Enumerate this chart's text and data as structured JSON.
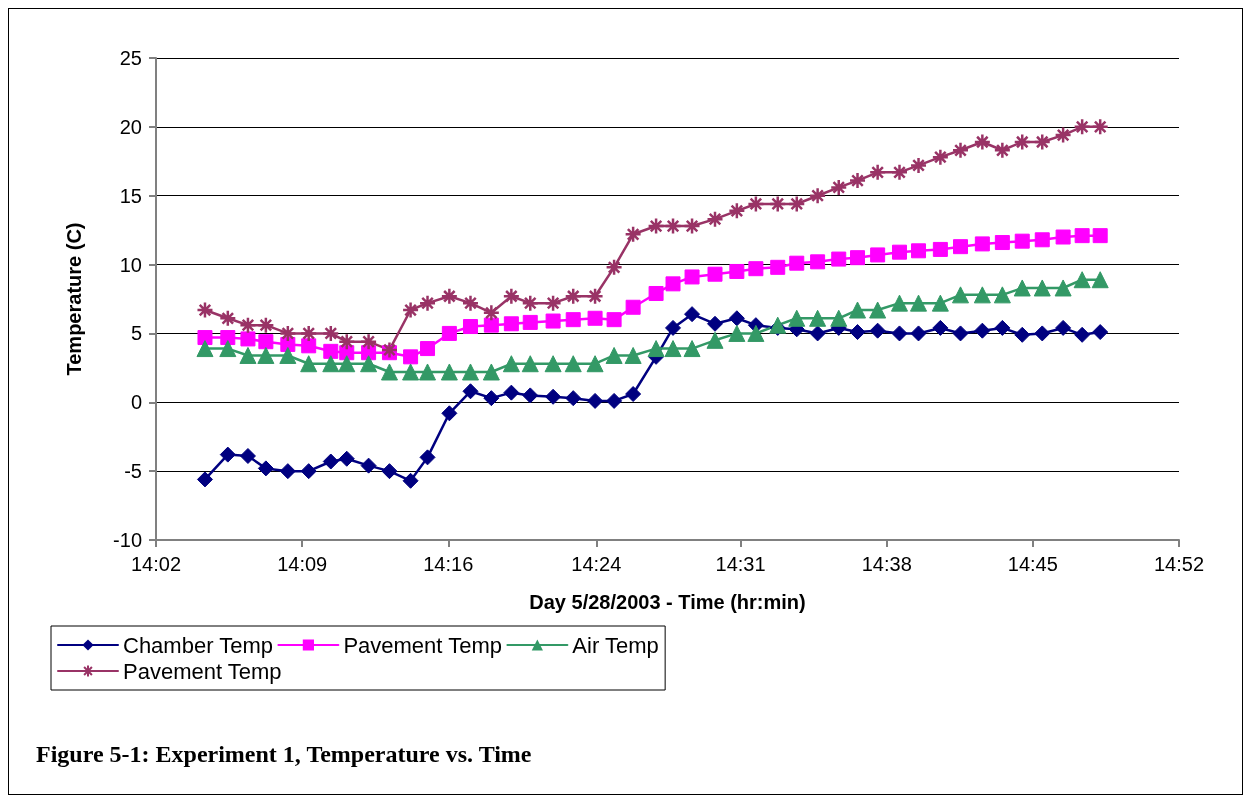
{
  "chart_data": {
    "type": "line",
    "xlabel": "Day 5/28/2003 - Time (hr:min)",
    "ylabel": "Temperature (C)",
    "annotations": [
      "Figure 5-1: Experiment 1, Temperature vs. Time"
    ],
    "x": [
      14.0732,
      14.0918,
      14.1082,
      14.1228,
      14.1407,
      14.1577,
      14.1757,
      14.1887,
      14.2065,
      14.2235,
      14.2407,
      14.2545,
      14.2723,
      14.2895,
      14.3065,
      14.3228,
      14.3382,
      14.3568,
      14.3732,
      14.391,
      14.4065,
      14.422,
      14.4407,
      14.4545,
      14.47,
      14.4887,
      14.5065,
      14.522,
      14.5398,
      14.5553,
      14.5723,
      14.5895,
      14.6048,
      14.6212,
      14.639,
      14.6545,
      14.6723,
      14.6887,
      14.7065,
      14.7228,
      14.739,
      14.7553,
      14.7723,
      14.7878,
      14.8025
    ],
    "series": [
      {
        "name": "Chamber Temp",
        "color": "#000080",
        "marker": "diamond",
        "values": [
          -5.6,
          -3.8,
          -3.9,
          -4.8,
          -5.0,
          -5.0,
          -4.3,
          -4.1,
          -4.6,
          -5.0,
          -5.7,
          -4.0,
          -0.8,
          0.8,
          0.3,
          0.7,
          0.5,
          0.4,
          0.3,
          0.1,
          0.1,
          0.6,
          3.3,
          5.4,
          6.4,
          5.7,
          6.1,
          5.6,
          5.4,
          5.3,
          5.0,
          5.4,
          5.1,
          5.2,
          5.0,
          5.0,
          5.4,
          5.0,
          5.2,
          5.4,
          4.9,
          5.0,
          5.4,
          4.9,
          5.1
        ]
      },
      {
        "name": "Pavement Temp",
        "color": "#ff00ff",
        "marker": "square",
        "values": [
          4.7,
          4.7,
          4.6,
          4.4,
          4.2,
          4.1,
          3.7,
          3.6,
          3.6,
          3.6,
          3.3,
          3.9,
          5.0,
          5.5,
          5.6,
          5.7,
          5.8,
          5.9,
          6.0,
          6.1,
          6.0,
          6.9,
          7.9,
          8.6,
          9.1,
          9.3,
          9.5,
          9.7,
          9.8,
          10.1,
          10.2,
          10.4,
          10.5,
          10.7,
          10.9,
          11.0,
          11.1,
          11.3,
          11.5,
          11.6,
          11.7,
          11.8,
          12.0,
          12.1,
          12.1
        ]
      },
      {
        "name": "Air Temp",
        "color": "#339966",
        "marker": "triangle",
        "values": [
          3.9,
          3.9,
          3.4,
          3.4,
          3.4,
          2.8,
          2.8,
          2.8,
          2.8,
          2.2,
          2.2,
          2.2,
          2.2,
          2.2,
          2.2,
          2.8,
          2.8,
          2.8,
          2.8,
          2.8,
          3.4,
          3.4,
          3.9,
          3.9,
          3.9,
          4.5,
          5.0,
          5.0,
          5.6,
          6.1,
          6.1,
          6.1,
          6.7,
          6.7,
          7.2,
          7.2,
          7.2,
          7.8,
          7.8,
          7.8,
          8.3,
          8.3,
          8.3,
          8.9,
          8.9
        ]
      },
      {
        "name": "Pavement Temp",
        "color": "#993366",
        "marker": "cross",
        "values": [
          6.7,
          6.1,
          5.6,
          5.6,
          5.0,
          5.0,
          5.0,
          4.4,
          4.4,
          3.8,
          6.7,
          7.2,
          7.7,
          7.2,
          6.5,
          7.7,
          7.2,
          7.2,
          7.7,
          7.7,
          9.8,
          12.2,
          12.8,
          12.8,
          12.8,
          13.3,
          13.9,
          14.4,
          14.4,
          14.4,
          15.0,
          15.6,
          16.1,
          16.7,
          16.7,
          17.2,
          17.8,
          18.3,
          18.9,
          18.3,
          18.9,
          18.9,
          19.4,
          20.0,
          20.0
        ]
      }
    ],
    "xlim": [
      14.0333,
      14.8667
    ],
    "xticks": [
      {
        "value": 14.0333,
        "label": "14:02"
      },
      {
        "value": 14.1524,
        "label": "14:09"
      },
      {
        "value": 14.2714,
        "label": "14:16"
      },
      {
        "value": 14.392,
        "label": "14:24"
      },
      {
        "value": 14.5095,
        "label": "14:31"
      },
      {
        "value": 14.6286,
        "label": "14:38"
      },
      {
        "value": 14.7476,
        "label": "14:45"
      },
      {
        "value": 14.8667,
        "label": "14:52"
      }
    ],
    "ylim": [
      -10,
      25
    ],
    "yticks": [
      -10,
      -5,
      0,
      5,
      10,
      15,
      20,
      25
    ],
    "grid": "y",
    "legend": "bottom",
    "line_style": "solid"
  }
}
